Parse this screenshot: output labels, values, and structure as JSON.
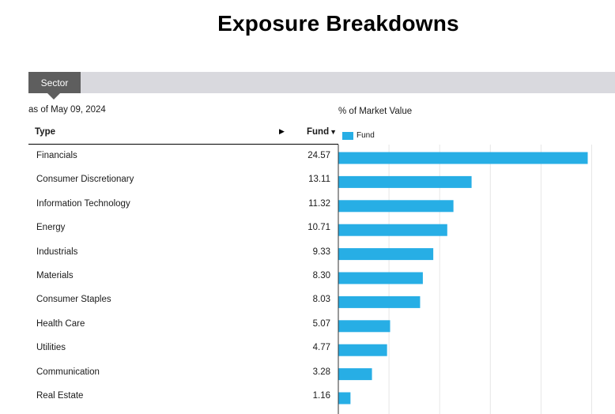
{
  "page_title": "Exposure Breakdowns",
  "tabs": [
    {
      "label": "Sector",
      "active": true
    }
  ],
  "as_of": "as of May 09, 2024",
  "table": {
    "col_type": "Type",
    "col_fund": "Fund",
    "sort_icon": "sort-desc-triangle",
    "expand_icon": "play-triangle"
  },
  "colors": {
    "bar": "#27aee5",
    "tab_active": "#5e5e5e",
    "tab_bar": "#d9d9de"
  },
  "chart_data": {
    "type": "bar",
    "orientation": "horizontal",
    "title": "% of Market Value",
    "legend": [
      "Fund"
    ],
    "legend_position": "top-left",
    "grid": true,
    "xlim": [
      0,
      27.5
    ],
    "categories": [
      "Financials",
      "Consumer Discretionary",
      "Information Technology",
      "Energy",
      "Industrials",
      "Materials",
      "Consumer Staples",
      "Health Care",
      "Utilities",
      "Communication",
      "Real Estate"
    ],
    "series": [
      {
        "name": "Fund",
        "values": [
          24.57,
          13.11,
          11.32,
          10.71,
          9.33,
          8.3,
          8.03,
          5.07,
          4.77,
          3.28,
          1.16
        ],
        "labels": [
          "24.57",
          "13.11",
          "11.32",
          "10.71",
          "9.33",
          "8.30",
          "8.03",
          "5.07",
          "4.77",
          "3.28",
          "1.16"
        ]
      }
    ]
  }
}
